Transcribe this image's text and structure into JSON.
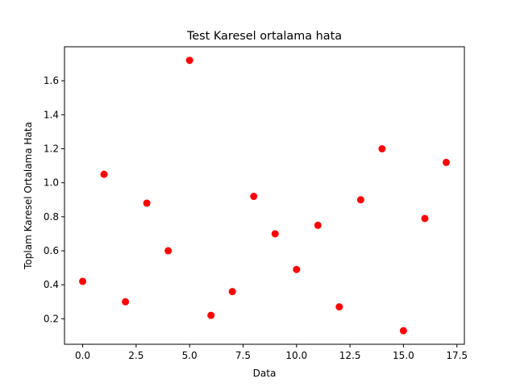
{
  "chart_data": {
    "type": "scatter",
    "title": "Test Karesel ortalama hata",
    "xlabel": "Data",
    "ylabel": "Toplam Karesel Ortalama Hata",
    "xlim": [
      -0.85,
      17.85
    ],
    "ylim": [
      0.05,
      1.8
    ],
    "xticks": [
      0.0,
      2.5,
      5.0,
      7.5,
      10.0,
      12.5,
      15.0,
      17.5
    ],
    "xtick_labels": [
      "0.0",
      "2.5",
      "5.0",
      "7.5",
      "10.0",
      "12.5",
      "15.0",
      "17.5"
    ],
    "yticks": [
      0.2,
      0.4,
      0.6,
      0.8,
      1.0,
      1.2,
      1.4,
      1.6
    ],
    "ytick_labels": [
      "0.2",
      "0.4",
      "0.6",
      "0.8",
      "1.0",
      "1.2",
      "1.4",
      "1.6"
    ],
    "grid": false,
    "legend": "none",
    "marker_color": "#ff0000",
    "series": [
      {
        "x": [
          0,
          1,
          2,
          3,
          4,
          5,
          6,
          7,
          8,
          9,
          10,
          11,
          12,
          13,
          14,
          15,
          16,
          17
        ],
        "y": [
          0.42,
          1.05,
          0.3,
          0.88,
          0.6,
          1.72,
          0.22,
          0.36,
          0.92,
          0.7,
          0.49,
          0.75,
          0.27,
          0.9,
          1.2,
          0.13,
          0.79,
          1.12
        ]
      }
    ]
  }
}
